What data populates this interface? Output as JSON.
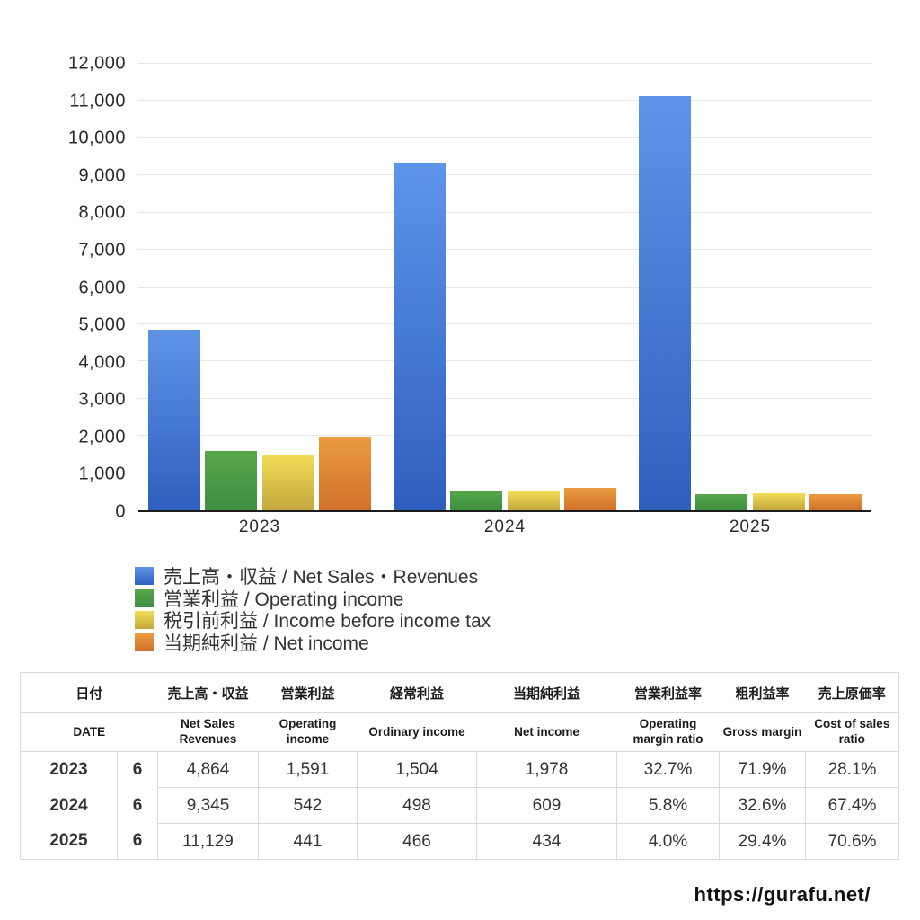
{
  "chart_data": {
    "type": "bar",
    "categories": [
      "2023",
      "2024",
      "2025"
    ],
    "series": [
      {
        "name": "売上高・収益 / Net Sales・Revenues",
        "color_top": "#5e94e8",
        "color_bottom": "#2f5fbe",
        "values": [
          4864,
          9345,
          11129
        ]
      },
      {
        "name": "営業利益 / Operating income",
        "color_top": "#58a74b",
        "color_bottom": "#3d8e40",
        "values": [
          1591,
          542,
          441
        ]
      },
      {
        "name": "税引前利益 / Income before income tax",
        "color_top": "#f3dd55",
        "color_bottom": "#c2a63d",
        "values": [
          1504,
          498,
          466
        ]
      },
      {
        "name": "当期純利益 / Net income",
        "color_top": "#eb9b41",
        "color_bottom": "#d0712b",
        "values": [
          1978,
          609,
          434
        ]
      }
    ],
    "ylim": [
      0,
      12000
    ],
    "y_ticks": [
      {
        "v": 0,
        "label": "0"
      },
      {
        "v": 1000,
        "label": "1,000"
      },
      {
        "v": 2000,
        "label": "2,000"
      },
      {
        "v": 3000,
        "label": "3,000"
      },
      {
        "v": 4000,
        "label": "4,000"
      },
      {
        "v": 5000,
        "label": "5,000"
      },
      {
        "v": 6000,
        "label": "6,000"
      },
      {
        "v": 7000,
        "label": "7,000"
      },
      {
        "v": 8000,
        "label": "8,000"
      },
      {
        "v": 9000,
        "label": "9,000"
      },
      {
        "v": 10000,
        "label": "10,000"
      },
      {
        "v": 11000,
        "label": "11,000"
      },
      {
        "v": 12000,
        "label": "12,000"
      }
    ],
    "grid": true,
    "legend_position": "bottom-left",
    "title": "",
    "xlabel": "",
    "ylabel": ""
  },
  "table": {
    "header_jp": [
      "日付",
      "売上高・収益",
      "営業利益",
      "経常利益",
      "当期純利益",
      "営業利益率",
      "粗利益率",
      "売上原価率"
    ],
    "header_en": [
      "DATE",
      "Net Sales Revenues",
      "Operating income",
      "Ordinary income",
      "Net income",
      "Operating margin ratio",
      "Gross margin",
      "Cost of sales ratio"
    ],
    "rows": [
      {
        "year": "2023",
        "month": "6",
        "net_sales": "4,864",
        "operating_income": "1,591",
        "ordinary_income": "1,504",
        "net_income": "1,978",
        "operating_margin": "32.7%",
        "gross_margin": "71.9%",
        "cost_of_sales": "28.1%"
      },
      {
        "year": "2024",
        "month": "6",
        "net_sales": "9,345",
        "operating_income": "542",
        "ordinary_income": "498",
        "net_income": "609",
        "operating_margin": "5.8%",
        "gross_margin": "32.6%",
        "cost_of_sales": "67.4%"
      },
      {
        "year": "2025",
        "month": "6",
        "net_sales": "11,129",
        "operating_income": "441",
        "ordinary_income": "466",
        "net_income": "434",
        "operating_margin": "4.0%",
        "gross_margin": "29.4%",
        "cost_of_sales": "70.6%"
      }
    ]
  },
  "footer": {
    "url": "https://gurafu.net/"
  }
}
